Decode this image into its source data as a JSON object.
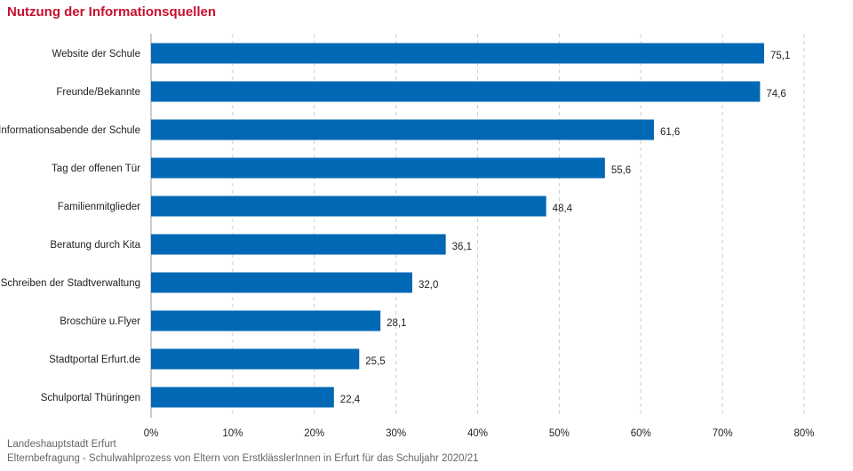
{
  "title": "Nutzung der Informationsquellen",
  "colors": {
    "title": "#c8102e",
    "bar": "#0068b4",
    "grid": "#cccccc",
    "axis": "#999999"
  },
  "source_lines": [
    "Landeshauptstadt Erfurt",
    "Elternbefragung - Schulwahlprozess von Eltern von ErstklässlerInnen in Erfurt für das Schuljahr 2020/21"
  ],
  "chart_data": {
    "type": "bar",
    "orientation": "horizontal",
    "title": "Nutzung der Informationsquellen",
    "categories": [
      "Website der Schule",
      "Freunde/Bekannte",
      "Informationsabende der Schule",
      "Tag der offenen Tür",
      "Familienmitglieder",
      "Beratung durch Kita",
      "Schreiben der Stadtverwaltung",
      "Broschüre u.Flyer",
      "Stadtportal Erfurt.de",
      "Schulportal Thüringen"
    ],
    "values": [
      75.1,
      74.6,
      61.6,
      55.6,
      48.4,
      36.1,
      32.0,
      28.1,
      25.5,
      22.4
    ],
    "value_labels": [
      "75,1",
      "74,6",
      "61,6",
      "55,6",
      "48,4",
      "36,1",
      "32,0",
      "28,1",
      "25,5",
      "22,4"
    ],
    "xlim": [
      0,
      80
    ],
    "x_ticks": [
      0,
      10,
      20,
      30,
      40,
      50,
      60,
      70,
      80
    ],
    "x_tick_labels": [
      "0%",
      "10%",
      "20%",
      "30%",
      "40%",
      "50%",
      "60%",
      "70%",
      "80%"
    ],
    "grid": "vertical-dashed",
    "legend": "none"
  }
}
